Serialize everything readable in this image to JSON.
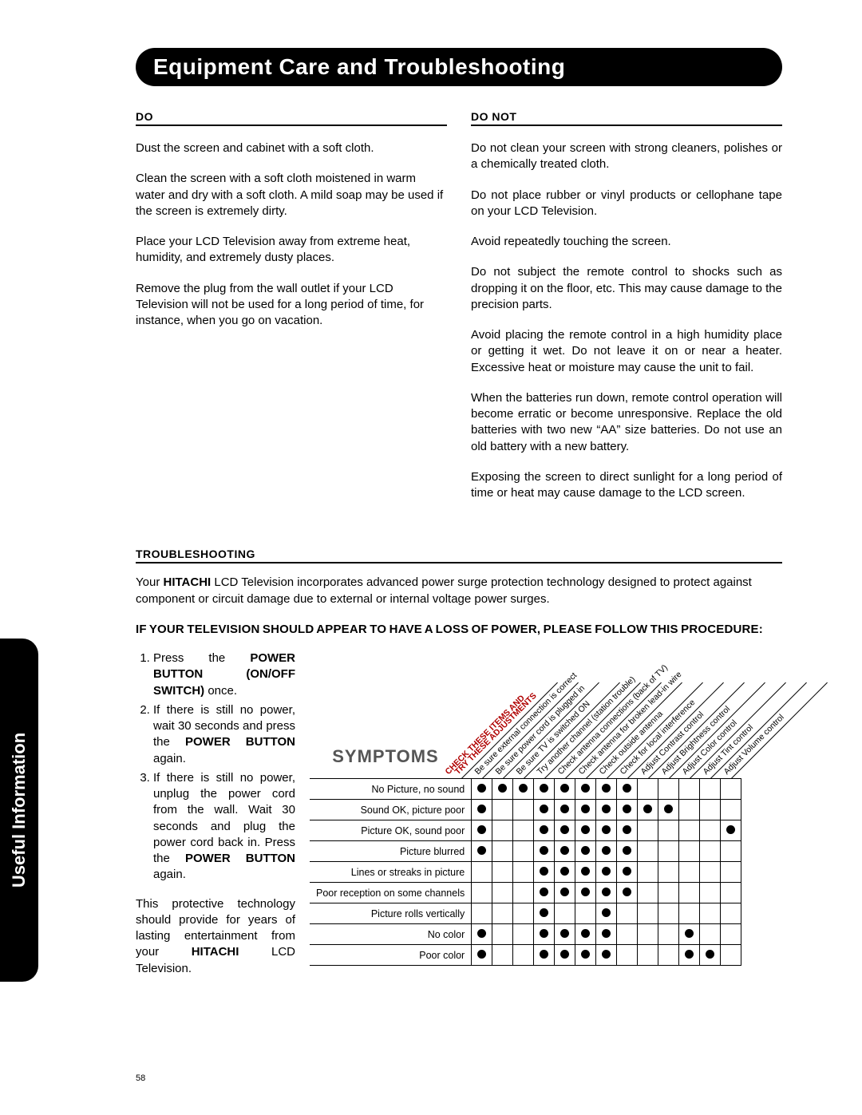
{
  "title": "Equipment Care and Troubleshooting",
  "side_tab": "Useful Information",
  "do_heading": "DO",
  "donot_heading": "DO NOT",
  "do_paras": [
    "Dust the screen and cabinet with a soft cloth.",
    "Clean the screen with a soft cloth moistened in warm water and dry with a soft cloth. A mild soap may be used if the screen is extremely dirty.",
    "Place your LCD Television away from extreme heat, humidity, and extremely dusty places.",
    "Remove the plug from the wall outlet if your LCD Television will not be used for a long period of time, for instance, when you go on vacation."
  ],
  "donot_paras": [
    "Do not clean your screen with strong cleaners, polishes or a chemically treated cloth.",
    "Do not place rubber or vinyl products or cellophane tape on your LCD Television.",
    "Avoid repeatedly touching the screen.",
    "Do not subject the remote control to shocks such as dropping it on the floor, etc. This may cause damage to the precision parts.",
    "Avoid placing the remote control in a high humidity place or getting it wet. Do not leave it on or near a heater. Excessive heat or moisture may cause the unit to fail.",
    "When the batteries run down, remote control operation will become erratic or become unresponsive.  Replace the old batteries with two new “AA” size batteries.  Do not use an old battery with a new battery.",
    "Exposing the screen to direct sunlight for a long period of time or heat may cause damage to the LCD screen."
  ],
  "troubleshooting_heading": "TROUBLESHOOTING",
  "troubleshooting_intro_pre": "Your ",
  "troubleshooting_intro_bold": "HITACHI",
  "troubleshooting_intro_post": " LCD Television incorporates advanced power surge protection technology designed to protect against component or circuit damage due to external or internal voltage power surges.",
  "procedure_heading": "IF YOUR TELEVISION SHOULD APPEAR TO HAVE A LOSS OF POWER, PLEASE FOLLOW THIS PROCEDURE:",
  "steps": {
    "s1_pre": "Press the ",
    "s1_bold": "POWER BUTTON (ON/OFF SWITCH)",
    "s1_post": " once.",
    "s2_pre": "If there is still no power, wait 30 seconds and press the ",
    "s2_bold": "POWER BUTTON",
    "s2_post": " again.",
    "s3_pre": "If there is still no power, unplug the power cord from the wall. Wait 30 seconds and plug the power cord back in. Press the ",
    "s3_bold": "POWER BUTTON",
    "s3_post": " again."
  },
  "closing_pre": "This protective technology should provide for years of lasting entertainment from your ",
  "closing_bold": "HITACHI",
  "closing_post": " LCD Television.",
  "matrix": {
    "header_red1": "CHECK THESE ITEMS AND",
    "header_red2": "TRY THESE ADJUSTMENTS",
    "symptoms_title": "SYMPTOMS",
    "columns": [
      "Be sure external connection is correct",
      "Be sure power cord is plugged in",
      "Be sure TV is switched ON",
      "Try another channel (station trouble)",
      "Check antenna connections (back of TV)",
      "Check antenna for broken lead-in wire",
      "Check outside antenna",
      "Check for local interference",
      "Adjust Contrast control",
      "Adjust Brightness control",
      "Adjust Color control",
      "Adjust Tint control",
      "Adjust Volume control"
    ],
    "rows": [
      {
        "label": "No Picture, no sound",
        "cells": [
          1,
          1,
          1,
          1,
          1,
          1,
          1,
          1,
          0,
          0,
          0,
          0,
          0
        ]
      },
      {
        "label": "Sound OK, picture poor",
        "cells": [
          1,
          0,
          0,
          1,
          1,
          1,
          1,
          1,
          1,
          1,
          0,
          0,
          0
        ]
      },
      {
        "label": "Picture OK, sound poor",
        "cells": [
          1,
          0,
          0,
          1,
          1,
          1,
          1,
          1,
          0,
          0,
          0,
          0,
          1
        ]
      },
      {
        "label": "Picture blurred",
        "cells": [
          1,
          0,
          0,
          1,
          1,
          1,
          1,
          1,
          0,
          0,
          0,
          0,
          0
        ]
      },
      {
        "label": "Lines or streaks in picture",
        "cells": [
          0,
          0,
          0,
          1,
          1,
          1,
          1,
          1,
          0,
          0,
          0,
          0,
          0
        ]
      },
      {
        "label": "Poor reception on some channels",
        "cells": [
          0,
          0,
          0,
          1,
          1,
          1,
          1,
          1,
          0,
          0,
          0,
          0,
          0
        ]
      },
      {
        "label": "Picture rolls vertically",
        "cells": [
          0,
          0,
          0,
          1,
          0,
          0,
          1,
          0,
          0,
          0,
          0,
          0,
          0
        ]
      },
      {
        "label": "No color",
        "cells": [
          1,
          0,
          0,
          1,
          1,
          1,
          1,
          0,
          0,
          0,
          1,
          0,
          0
        ]
      },
      {
        "label": "Poor color",
        "cells": [
          1,
          0,
          0,
          1,
          1,
          1,
          1,
          0,
          0,
          0,
          1,
          1,
          0
        ]
      }
    ]
  },
  "page_number": "58"
}
